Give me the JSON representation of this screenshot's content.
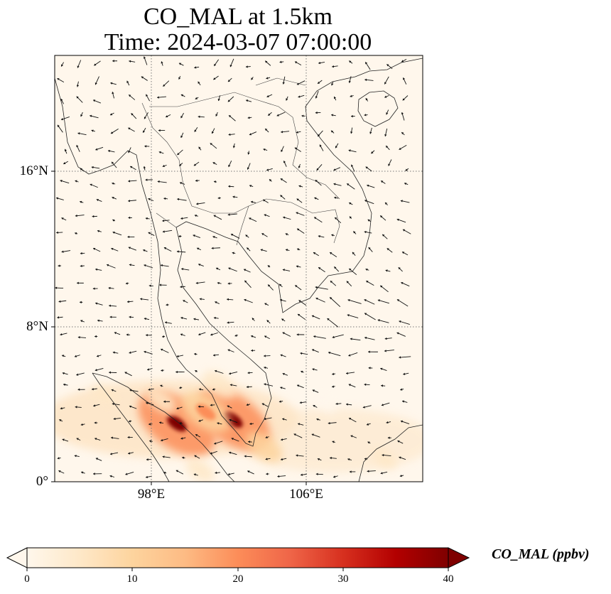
{
  "title": {
    "line1": "CO_MAL at 1.5km",
    "line2": "Time: 2024-03-07 07:00:00"
  },
  "map": {
    "lat_ticks": [
      "16°N",
      "8°N",
      "0°"
    ],
    "lon_ticks": [
      "98°E",
      "106°E"
    ],
    "extent": {
      "lon": [
        93,
        112
      ],
      "lat": [
        0,
        22
      ]
    },
    "gridlines": true
  },
  "colorbar": {
    "label": "CO_MAL (ppbv)",
    "ticks": [
      "0",
      "10",
      "20",
      "30",
      "40"
    ],
    "range": [
      0,
      40
    ],
    "extend": "both",
    "colormap": "OrRd",
    "colors": [
      "#fff7ec",
      "#fee8c8",
      "#fdd49e",
      "#fdbb84",
      "#fc8d59",
      "#ef6548",
      "#d7301f",
      "#b30000",
      "#7f0000"
    ]
  },
  "co_hotspots": [
    {
      "lon": 99.3,
      "lat": 3.0,
      "value": 40
    },
    {
      "lon": 102.2,
      "lat": 3.2,
      "value": 38
    },
    {
      "lon": 100.8,
      "lat": 3.6,
      "value": 22
    },
    {
      "lon": 101.5,
      "lat": 5.0,
      "value": 12
    },
    {
      "lon": 98.5,
      "lat": 4.2,
      "value": 10
    },
    {
      "lon": 103.8,
      "lat": 1.8,
      "value": 14
    },
    {
      "lon": 100.5,
      "lat": 0.6,
      "value": 9
    },
    {
      "lon": 95.5,
      "lat": 4.5,
      "value": 6
    },
    {
      "lon": 110.0,
      "lat": 1.2,
      "value": 7
    },
    {
      "lon": 107.0,
      "lat": 4.0,
      "value": 4
    }
  ]
}
